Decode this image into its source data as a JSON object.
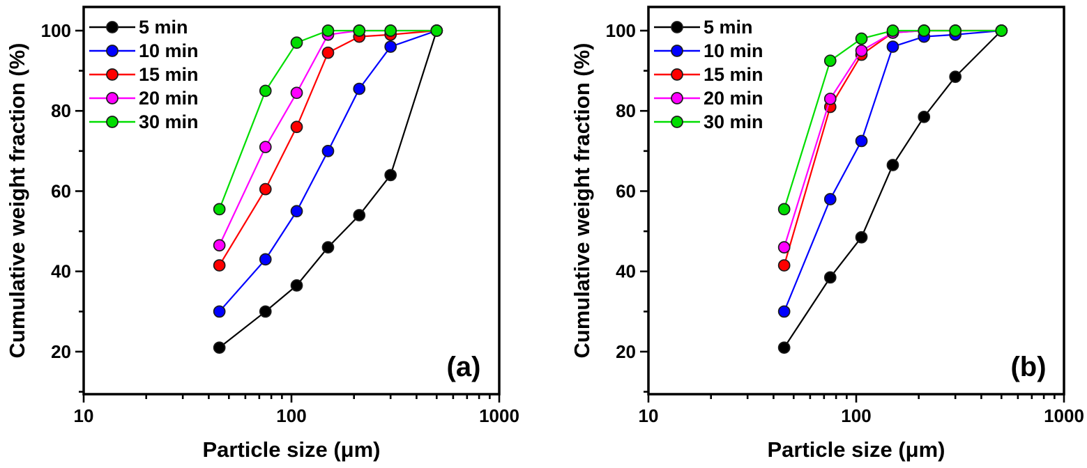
{
  "figure": {
    "background": "#ffffff",
    "marker_edge_color": "#1a1a1a"
  },
  "chart_data": [
    {
      "type": "line",
      "panel_label": "(a)",
      "xlabel": "Particle size (μm)",
      "ylabel": "Cumulative weight fraction (%)",
      "x_scale": "log",
      "xlim": [
        10,
        1000
      ],
      "ylim": [
        9.4,
        105.9
      ],
      "x_major_ticks": [
        10,
        100,
        1000
      ],
      "y_major_ticks": [
        20,
        40,
        60,
        80,
        100
      ],
      "y_minor_ticks": [
        10,
        30,
        50,
        70,
        90
      ],
      "grid": false,
      "legend_position": "top-left",
      "x": [
        45,
        75,
        106,
        150,
        212,
        300,
        500
      ],
      "series": [
        {
          "name": "5 min",
          "color": "#000000",
          "values": [
            21,
            30,
            36.5,
            46,
            54,
            64,
            100
          ]
        },
        {
          "name": "10 min",
          "color": "#0000FF",
          "values": [
            30,
            43,
            55,
            70,
            85.5,
            96,
            100
          ]
        },
        {
          "name": "15 min",
          "color": "#FF0000",
          "values": [
            41.5,
            60.5,
            76,
            94.5,
            98.5,
            99,
            100
          ]
        },
        {
          "name": "20 min",
          "color": "#FF00FF",
          "values": [
            46.5,
            71,
            84.5,
            99,
            100,
            100,
            100
          ]
        },
        {
          "name": "30 min",
          "color": "#00DD00",
          "values": [
            55.5,
            85,
            97,
            100,
            100,
            100,
            100
          ]
        }
      ]
    },
    {
      "type": "line",
      "panel_label": "(b)",
      "xlabel": "Particle size (μm)",
      "ylabel": "Cumulative weight fraction (%)",
      "x_scale": "log",
      "xlim": [
        10,
        1000
      ],
      "ylim": [
        9.4,
        105.9
      ],
      "x_major_ticks": [
        10,
        100,
        1000
      ],
      "y_major_ticks": [
        20,
        40,
        60,
        80,
        100
      ],
      "y_minor_ticks": [
        10,
        30,
        50,
        70,
        90
      ],
      "grid": false,
      "legend_position": "top-left",
      "x": [
        45,
        75,
        106,
        150,
        212,
        300,
        500
      ],
      "series": [
        {
          "name": "5 min",
          "color": "#000000",
          "values": [
            21,
            38.5,
            48.5,
            66.5,
            78.5,
            88.5,
            100
          ]
        },
        {
          "name": "10 min",
          "color": "#0000FF",
          "values": [
            30,
            58,
            72.5,
            96,
            98.5,
            99,
            100
          ]
        },
        {
          "name": "15 min",
          "color": "#FF0000",
          "values": [
            41.5,
            81,
            94,
            99.5,
            100,
            100,
            100
          ]
        },
        {
          "name": "20 min",
          "color": "#FF00FF",
          "values": [
            46,
            83,
            95,
            99.5,
            100,
            100,
            100
          ]
        },
        {
          "name": "30 min",
          "color": "#00DD00",
          "values": [
            55.5,
            92.5,
            98,
            100,
            100,
            100,
            100
          ]
        }
      ]
    }
  ]
}
